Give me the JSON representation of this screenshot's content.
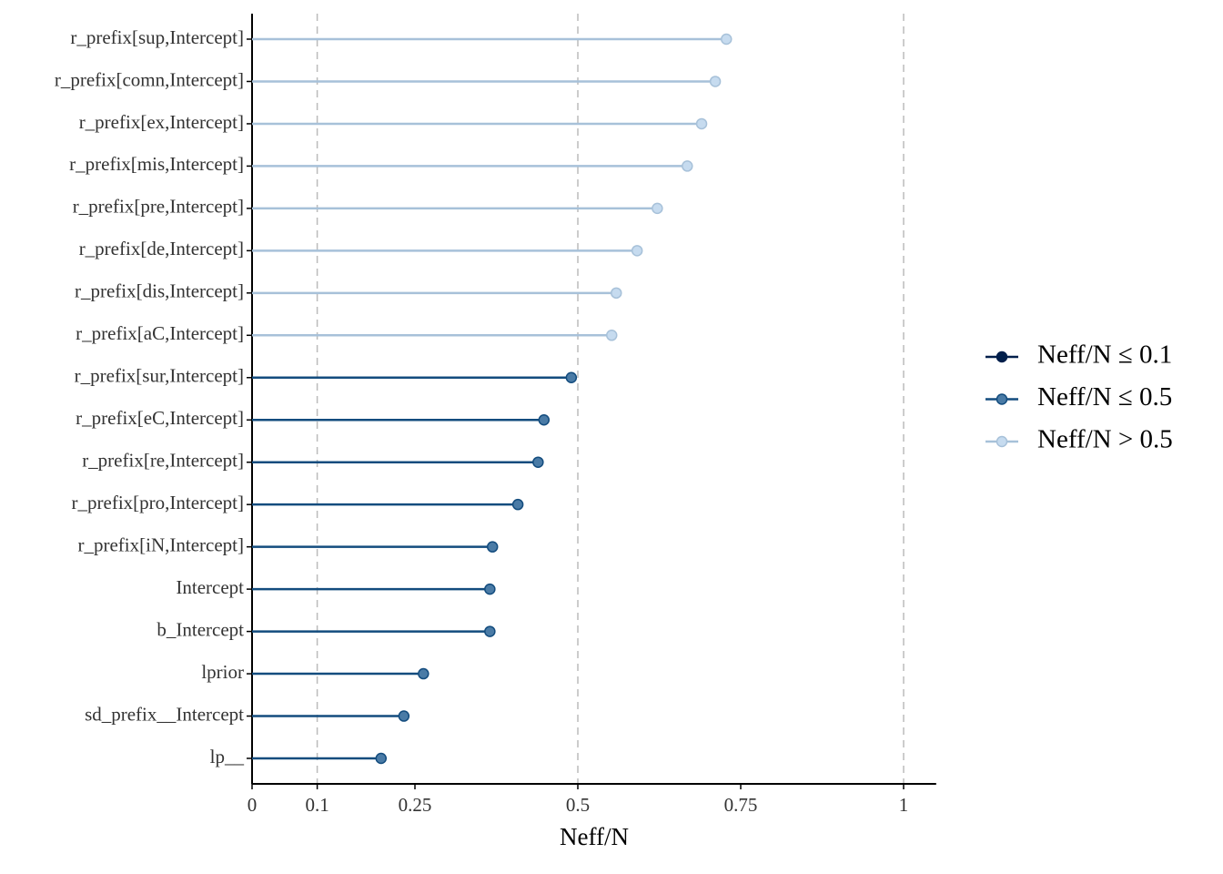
{
  "chart_data": {
    "type": "lollipop",
    "x_label": "Neff/N",
    "categories": [
      "r_prefix[sup,Intercept]",
      "r_prefix[comn,Intercept]",
      "r_prefix[ex,Intercept]",
      "r_prefix[mis,Intercept]",
      "r_prefix[pre,Intercept]",
      "r_prefix[de,Intercept]",
      "r_prefix[dis,Intercept]",
      "r_prefix[aC,Intercept]",
      "r_prefix[sur,Intercept]",
      "r_prefix[eC,Intercept]",
      "r_prefix[re,Intercept]",
      "r_prefix[pro,Intercept]",
      "r_prefix[iN,Intercept]",
      "Intercept",
      "b_Intercept",
      "lprior",
      "sd_prefix__Intercept",
      "lp__"
    ],
    "series": [
      {
        "name": "Neff/N ≤ 0.1",
        "color": "#011f4b",
        "line_color": "#011f4b",
        "values": [
          null,
          null,
          null,
          null,
          null,
          null,
          null,
          null,
          null,
          null,
          null,
          null,
          null,
          null,
          null,
          null,
          null,
          null
        ]
      },
      {
        "name": "Neff/N ≤ 0.5",
        "color": "#4a7ba6",
        "line_color": "#134c7e",
        "values": [
          null,
          null,
          null,
          null,
          null,
          null,
          null,
          null,
          0.49,
          0.448,
          0.439,
          0.408,
          0.369,
          0.365,
          0.365,
          0.263,
          0.233,
          0.198
        ]
      },
      {
        "name": "Neff/N > 0.5",
        "color": "#c6dbef",
        "line_color": "#a7c1d9",
        "values": [
          0.728,
          0.711,
          0.69,
          0.668,
          0.622,
          0.591,
          0.559,
          0.552,
          null,
          null,
          null,
          null,
          null,
          null,
          null,
          null,
          null,
          null
        ]
      }
    ],
    "xlim": [
      0,
      1.05
    ],
    "xticks": [
      0,
      0.1,
      0.25,
      0.5,
      0.75,
      1
    ],
    "reference_lines": [
      0.1,
      0.5,
      1
    ],
    "legend": "right"
  }
}
